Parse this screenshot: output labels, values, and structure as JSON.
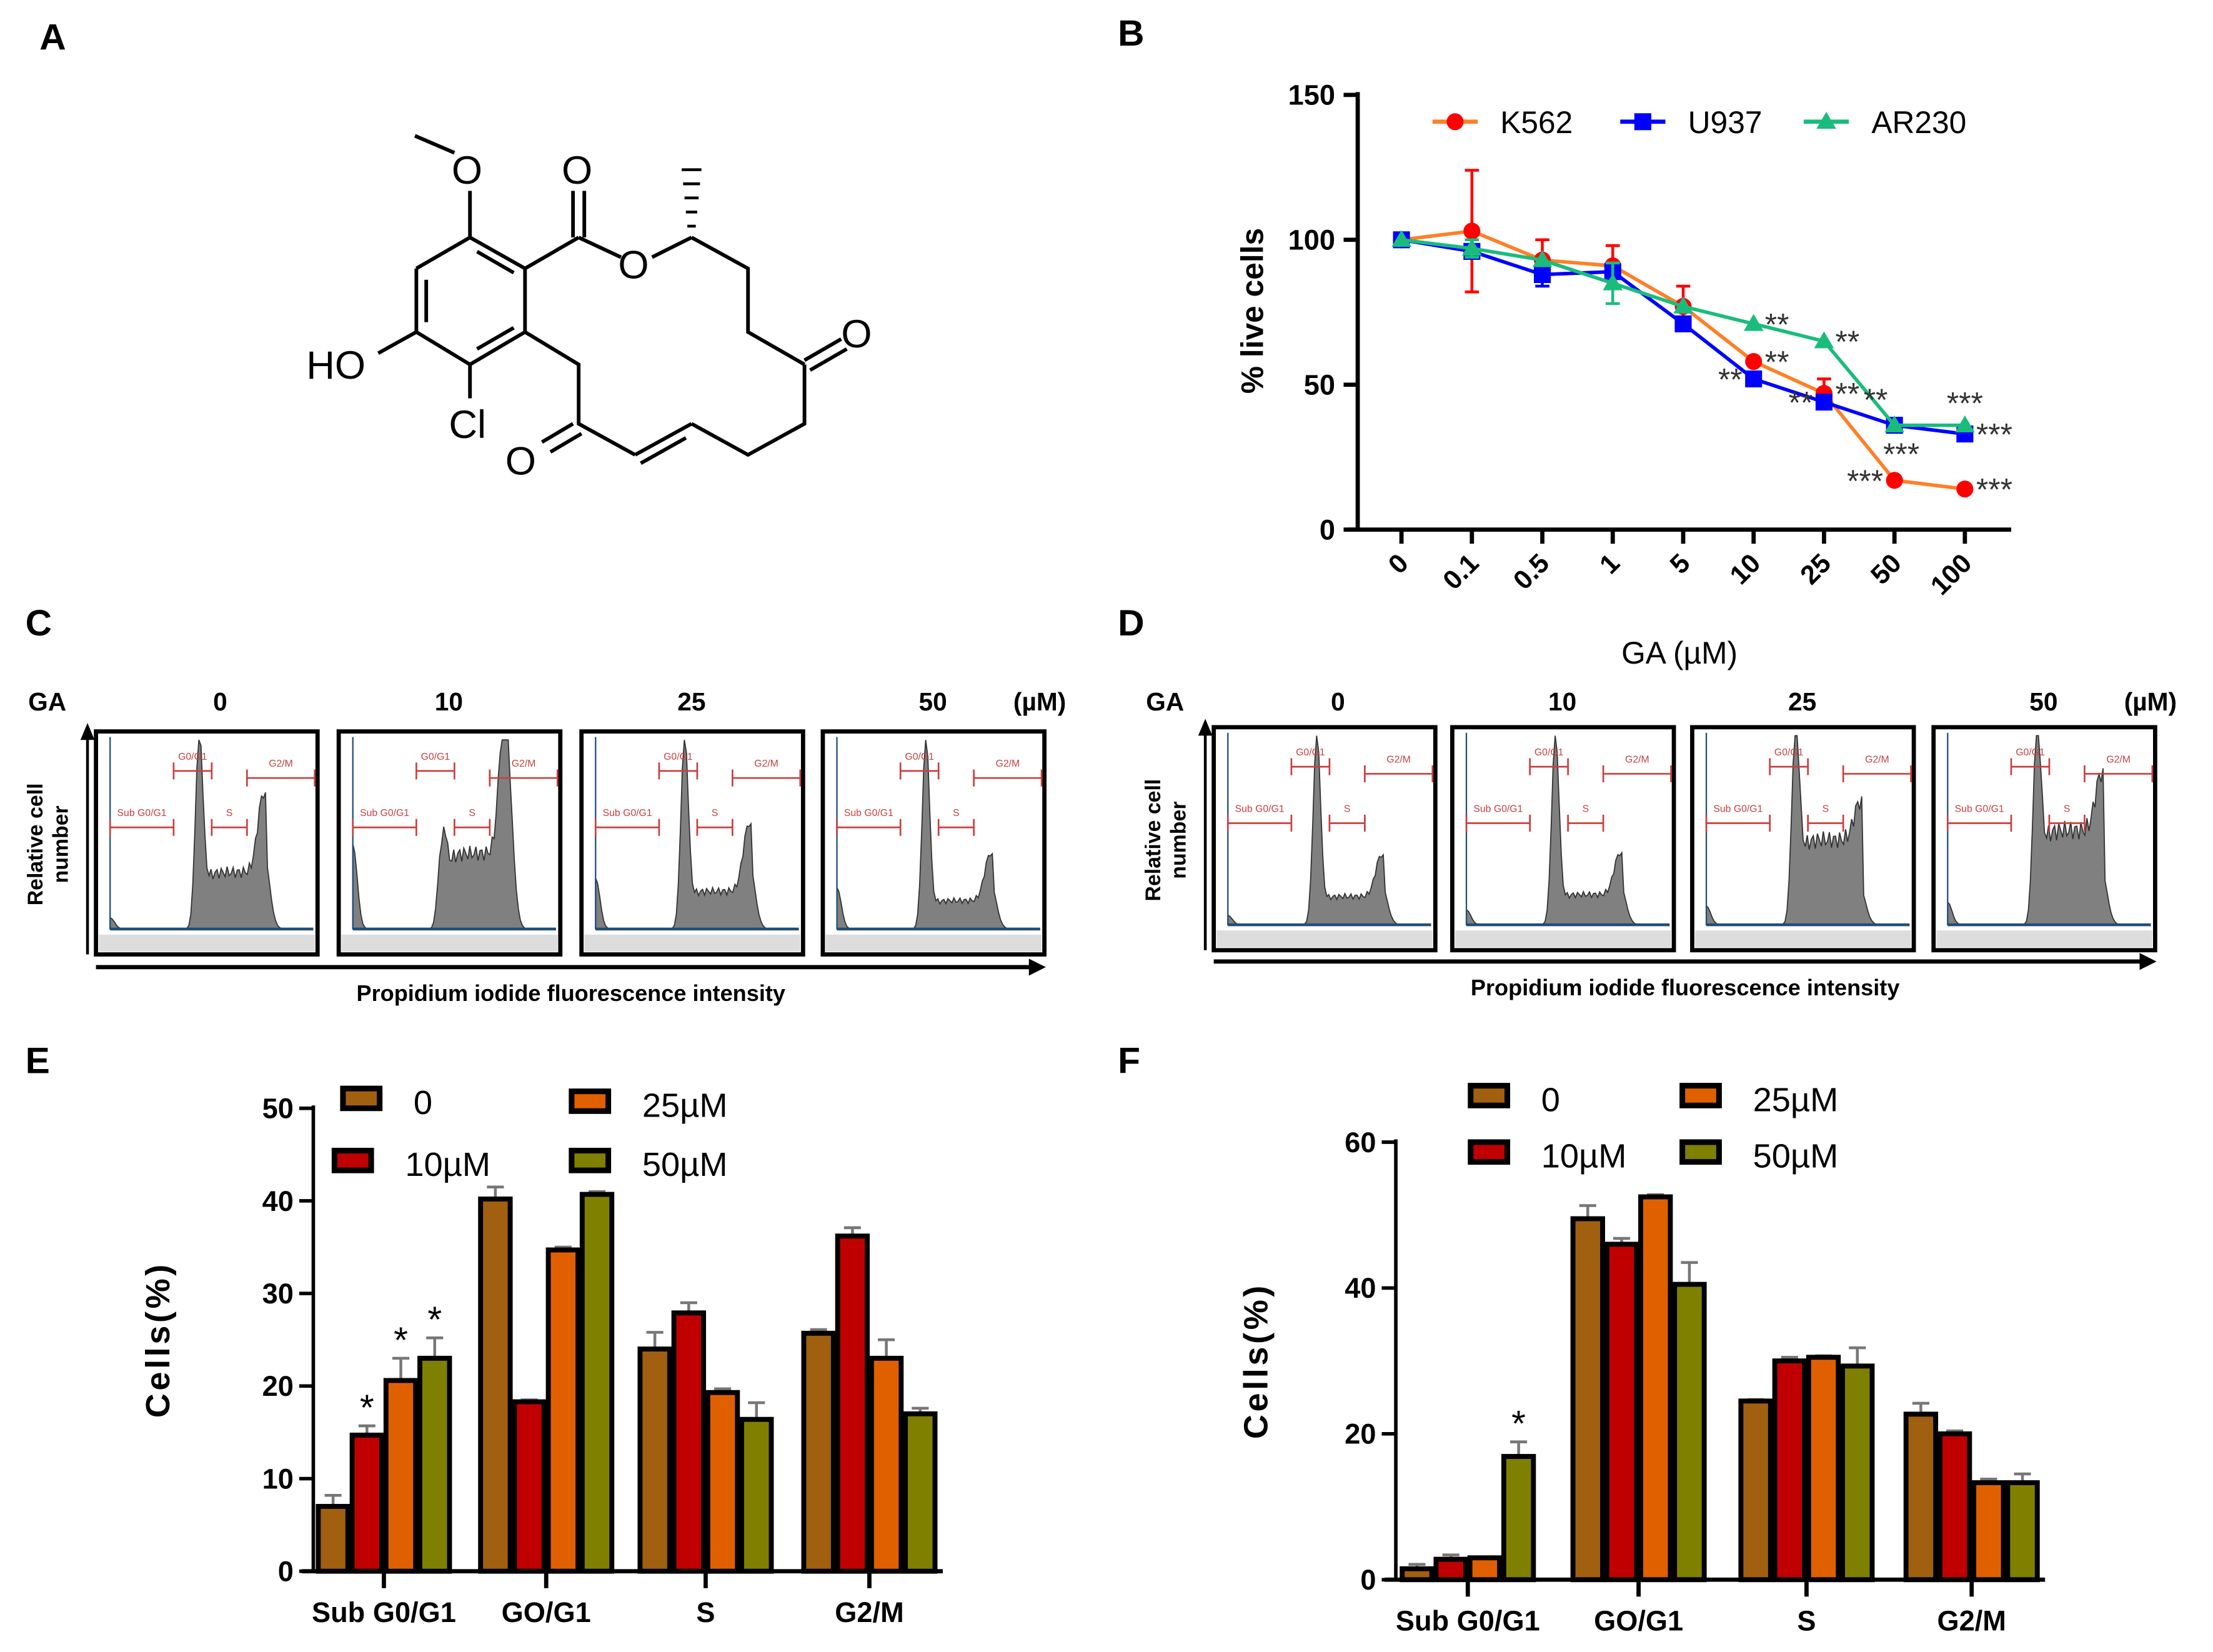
{
  "panels": {
    "A": "A",
    "B": "B",
    "C": "C",
    "D": "D",
    "E": "E",
    "F": "F"
  },
  "structure": {
    "atoms": {
      "methoxy_o": "O",
      "ester_co": "O",
      "ester_o": "O",
      "ketone1": "O",
      "hydroxyl": "HO",
      "chloro": "Cl",
      "ketone2": "O"
    }
  },
  "chart_data": [
    {
      "id": "B",
      "type": "line",
      "title": "",
      "xlabel": "GA (µM)",
      "ylabel": "% live cells",
      "categories": [
        "0",
        "0.1",
        "0.5",
        "1",
        "5",
        "10",
        "25",
        "50",
        "100"
      ],
      "ylim": [
        0,
        150
      ],
      "yticks": [
        "0",
        "50",
        "100",
        "150"
      ],
      "legend_position": "top",
      "series": [
        {
          "name": "K562",
          "color": "#ff7f27",
          "marker_color": "#ff0000",
          "marker": "circle",
          "values": [
            100,
            103,
            93,
            91,
            77,
            58,
            47,
            17,
            14
          ],
          "errors": [
            0,
            21,
            7,
            7,
            7,
            0,
            5,
            0,
            0
          ]
        },
        {
          "name": "U937",
          "color": "#0000ff",
          "marker_color": "#0000ff",
          "marker": "square",
          "values": [
            100,
            96,
            88,
            89,
            71,
            52,
            44,
            36,
            33
          ],
          "errors": [
            0,
            0,
            4,
            0,
            0,
            0,
            0,
            0,
            0
          ]
        },
        {
          "name": "AR230",
          "color": "#1abc7c",
          "marker_color": "#1abc7c",
          "marker": "triangle",
          "values": [
            100,
            97,
            93,
            85,
            77,
            71,
            65,
            36,
            36
          ],
          "errors": [
            0,
            3,
            0,
            7,
            0,
            0,
            0,
            0,
            0
          ]
        }
      ],
      "annotations": [
        {
          "text": "**",
          "series": "AR230",
          "x": "10",
          "side": "right"
        },
        {
          "text": "**",
          "series": "AR230",
          "x": "25",
          "side": "right"
        },
        {
          "text": "**",
          "series": "K562",
          "x": "10",
          "side": "right"
        },
        {
          "text": "**",
          "series": "U937",
          "x": "10",
          "side": "left"
        },
        {
          "text": "**",
          "series": "K562",
          "x": "25",
          "side": "right"
        },
        {
          "text": "**",
          "series": "U937",
          "x": "25",
          "side": "left"
        },
        {
          "text": "**",
          "series": "U937",
          "x": "25",
          "side": "right2"
        },
        {
          "text": "***",
          "series": "AR230",
          "x": "50",
          "side": "below"
        },
        {
          "text": "***",
          "series": "AR230",
          "x": "100",
          "side": "above"
        },
        {
          "text": "***",
          "series": "U937",
          "x": "100",
          "side": "right"
        },
        {
          "text": "***",
          "series": "K562",
          "x": "50",
          "side": "left"
        },
        {
          "text": "***",
          "series": "K562",
          "x": "100",
          "side": "right"
        }
      ]
    },
    {
      "id": "E",
      "type": "bar",
      "ylabel": "Cells(%)",
      "categories": [
        "Sub G0/G1",
        "GO/G1",
        "S",
        "G2/M"
      ],
      "ylim": [
        0,
        50
      ],
      "yticks": [
        "0",
        "10",
        "20",
        "30",
        "40",
        "50"
      ],
      "legend_position": "top",
      "series": [
        {
          "name": "0",
          "color": "#a0600f",
          "values": [
            7,
            40.2,
            24,
            25.7
          ],
          "errors": [
            1.2,
            1.3,
            1.8,
            0.4
          ]
        },
        {
          "name": "10µM",
          "color": "#c00000",
          "values": [
            14.7,
            18.3,
            27.9,
            36.2
          ],
          "errors": [
            1,
            0.2,
            1.1,
            0.9
          ]
        },
        {
          "name": "25µM",
          "color": "#e06000",
          "values": [
            20.6,
            34.7,
            19.3,
            23
          ],
          "errors": [
            2.4,
            0.3,
            0.4,
            2
          ]
        },
        {
          "name": "50µM",
          "color": "#808000",
          "values": [
            23,
            40.7,
            16.4,
            17
          ],
          "errors": [
            2.2,
            0.3,
            1.8,
            0.6
          ]
        }
      ],
      "significance": [
        {
          "category": "Sub G0/G1",
          "series": "10µM",
          "text": "*"
        },
        {
          "category": "Sub G0/G1",
          "series": "25µM",
          "text": "*"
        },
        {
          "category": "Sub G0/G1",
          "series": "50µM",
          "text": "*"
        }
      ]
    },
    {
      "id": "F",
      "type": "bar",
      "ylabel": "Cells(%)",
      "categories": [
        "Sub G0/G1",
        "GO/G1",
        "S",
        "G2/M"
      ],
      "ylim": [
        0,
        60
      ],
      "yticks": [
        "0",
        "20",
        "40",
        "60"
      ],
      "legend_position": "top",
      "series": [
        {
          "name": "0",
          "color": "#a0600f",
          "values": [
            1.5,
            49.5,
            24.5,
            22.7
          ],
          "errors": [
            0.6,
            1.8,
            0.2,
            1.5
          ]
        },
        {
          "name": "10µM",
          "color": "#c00000",
          "values": [
            2.8,
            46,
            30,
            20
          ],
          "errors": [
            0.6,
            0.8,
            0.5,
            0.4
          ]
        },
        {
          "name": "25µM",
          "color": "#e06000",
          "values": [
            3,
            52.5,
            30.5,
            13.3
          ],
          "errors": [
            0,
            0.3,
            0.2,
            0.5
          ]
        },
        {
          "name": "50µM",
          "color": "#808000",
          "values": [
            16.9,
            40.5,
            29.3,
            13.3
          ],
          "errors": [
            2,
            3,
            2.5,
            1.2
          ]
        }
      ],
      "significance": [
        {
          "category": "Sub G0/G1",
          "series": "50µM",
          "text": "*"
        }
      ]
    }
  ],
  "flow": {
    "ga_label": "GA",
    "unit": "(µM)",
    "doses": [
      "0",
      "10",
      "25",
      "50"
    ],
    "ylabel_line1": "Relative cell",
    "ylabel_line2": "number",
    "xlabel": "Propidium iodide fluorescence intensity",
    "gates": {
      "g0g1": "G0/G1",
      "g2m": "G2/M",
      "sub": "Sub G0/G1",
      "s": "S"
    }
  }
}
